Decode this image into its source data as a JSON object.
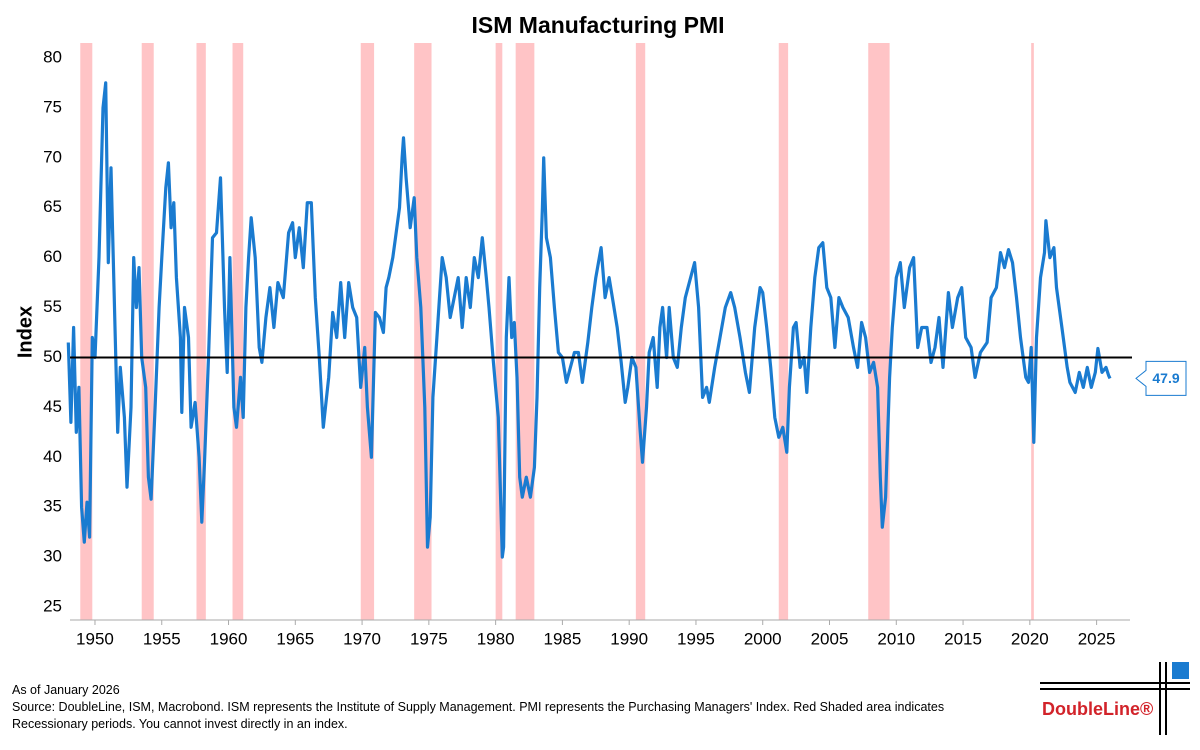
{
  "chart_data": {
    "type": "line",
    "title": "ISM Manufacturing PMI",
    "ylabel": "Index",
    "xlim": [
      1948.13,
      2027.5
    ],
    "ylim": [
      23.7,
      81.5
    ],
    "xticks": [
      1950,
      1955,
      1960,
      1965,
      1970,
      1975,
      1980,
      1985,
      1990,
      1995,
      2000,
      2005,
      2010,
      2015,
      2020,
      2025
    ],
    "yticks": [
      25,
      30,
      35,
      40,
      45,
      50,
      55,
      60,
      65,
      70,
      75,
      80
    ],
    "reference_line": 50,
    "color": "#1a7bd0",
    "recession_color": "#ffc4c6",
    "recessions": [
      [
        1948.9,
        1949.8
      ],
      [
        1953.5,
        1954.4
      ],
      [
        1957.6,
        1958.3
      ],
      [
        1960.3,
        1961.1
      ],
      [
        1969.9,
        1970.9
      ],
      [
        1973.9,
        1975.2
      ],
      [
        1980.0,
        1980.5
      ],
      [
        1981.5,
        1982.9
      ],
      [
        1990.5,
        1991.2
      ],
      [
        2001.2,
        2001.9
      ],
      [
        2007.9,
        2009.5
      ],
      [
        2020.1,
        2020.3
      ]
    ],
    "x": [
      1948.0,
      1948.2,
      1948.4,
      1948.6,
      1948.8,
      1949.0,
      1949.2,
      1949.4,
      1949.6,
      1949.8,
      1950.0,
      1950.3,
      1950.6,
      1950.8,
      1951.0,
      1951.2,
      1951.5,
      1951.7,
      1951.9,
      1952.2,
      1952.4,
      1952.7,
      1952.9,
      1953.1,
      1953.3,
      1953.5,
      1953.8,
      1954.0,
      1954.2,
      1954.5,
      1954.8,
      1955.0,
      1955.3,
      1955.5,
      1955.7,
      1955.9,
      1956.1,
      1956.4,
      1956.5,
      1956.7,
      1957.0,
      1957.2,
      1957.5,
      1957.8,
      1958.0,
      1958.2,
      1958.5,
      1958.8,
      1959.1,
      1959.4,
      1959.7,
      1959.9,
      1960.1,
      1960.4,
      1960.6,
      1960.9,
      1961.1,
      1961.3,
      1961.5,
      1961.7,
      1962.0,
      1962.3,
      1962.5,
      1962.8,
      1963.1,
      1963.4,
      1963.7,
      1964.1,
      1964.5,
      1964.8,
      1965.0,
      1965.3,
      1965.6,
      1965.9,
      1966.2,
      1966.5,
      1966.8,
      1967.1,
      1967.5,
      1967.8,
      1968.1,
      1968.4,
      1968.7,
      1969.0,
      1969.3,
      1969.6,
      1969.9,
      1970.2,
      1970.4,
      1970.7,
      1971.0,
      1971.3,
      1971.6,
      1971.8,
      1972.0,
      1972.3,
      1972.5,
      1972.8,
      1973.0,
      1973.1,
      1973.3,
      1973.6,
      1973.9,
      1974.1,
      1974.4,
      1974.7,
      1974.9,
      1975.1,
      1975.3,
      1975.6,
      1975.8,
      1976.0,
      1976.3,
      1976.6,
      1976.9,
      1977.2,
      1977.5,
      1977.8,
      1978.1,
      1978.4,
      1978.7,
      1979.0,
      1979.3,
      1979.5,
      1979.8,
      1980.0,
      1980.2,
      1980.5,
      1980.6,
      1980.8,
      1981.0,
      1981.2,
      1981.4,
      1981.6,
      1981.8,
      1982.0,
      1982.3,
      1982.6,
      1982.9,
      1983.1,
      1983.3,
      1983.5,
      1983.6,
      1983.8,
      1984.1,
      1984.4,
      1984.7,
      1985.0,
      1985.3,
      1985.6,
      1985.9,
      1986.2,
      1986.5,
      1986.9,
      1987.2,
      1987.5,
      1987.9,
      1988.2,
      1988.5,
      1988.8,
      1989.1,
      1989.4,
      1989.7,
      1989.9,
      1990.2,
      1990.5,
      1990.8,
      1991.0,
      1991.3,
      1991.5,
      1991.8,
      1992.1,
      1992.3,
      1992.5,
      1992.8,
      1993.0,
      1993.3,
      1993.6,
      1993.9,
      1994.2,
      1994.6,
      1994.9,
      1995.2,
      1995.5,
      1995.8,
      1996.0,
      1996.4,
      1996.8,
      1997.2,
      1997.6,
      1997.9,
      1998.3,
      1998.7,
      1999.0,
      1999.4,
      1999.8,
      2000.0,
      2000.3,
      2000.6,
      2000.9,
      2001.2,
      2001.5,
      2001.8,
      2002.0,
      2002.3,
      2002.5,
      2002.8,
      2003.1,
      2003.3,
      2003.6,
      2003.9,
      2004.2,
      2004.5,
      2004.8,
      2005.1,
      2005.4,
      2005.7,
      2006.0,
      2006.4,
      2006.8,
      2007.1,
      2007.4,
      2007.7,
      2008.0,
      2008.3,
      2008.6,
      2008.8,
      2008.95,
      2009.2,
      2009.5,
      2009.7,
      2010.0,
      2010.3,
      2010.6,
      2011.0,
      2011.3,
      2011.6,
      2011.9,
      2012.3,
      2012.6,
      2012.9,
      2013.2,
      2013.5,
      2013.9,
      2014.2,
      2014.6,
      2014.9,
      2015.2,
      2015.6,
      2015.9,
      2016.3,
      2016.8,
      2017.1,
      2017.5,
      2017.8,
      2018.1,
      2018.4,
      2018.7,
      2019.0,
      2019.3,
      2019.7,
      2019.9,
      2020.1,
      2020.3,
      2020.5,
      2020.8,
      2021.1,
      2021.2,
      2021.5,
      2021.8,
      2022.0,
      2022.4,
      2022.8,
      2023.0,
      2023.4,
      2023.7,
      2024.0,
      2024.3,
      2024.6,
      2024.9,
      2025.1,
      2025.4,
      2025.7,
      2025.9,
      2026.0
    ],
    "values": [
      51.5,
      43.5,
      53,
      42.5,
      47,
      35,
      31.5,
      35.5,
      32,
      52,
      50,
      60,
      75,
      77.5,
      59.5,
      69,
      53,
      42.5,
      49,
      44,
      37,
      45,
      60,
      55,
      59,
      50,
      47,
      38,
      35.8,
      45,
      55,
      60,
      67,
      69.5,
      63,
      65.5,
      58,
      52,
      44.5,
      55,
      52,
      43,
      45.5,
      40,
      33.5,
      39.5,
      50,
      62,
      62.5,
      68,
      55,
      48.5,
      60,
      45,
      43,
      48,
      44,
      55,
      60,
      64,
      60,
      51,
      49.5,
      54,
      57,
      53,
      57.5,
      56,
      62.5,
      63.5,
      60,
      63,
      59,
      65.5,
      65.5,
      56,
      50,
      43,
      48,
      54.5,
      52,
      57.5,
      52,
      57.5,
      55,
      54,
      47,
      51,
      45,
      40,
      54.5,
      54,
      52.5,
      57,
      58,
      60,
      62,
      65,
      70,
      72,
      68,
      63,
      66,
      60,
      55,
      45,
      31,
      34,
      46,
      52,
      56,
      60,
      58,
      54,
      56,
      58,
      53,
      58,
      55,
      60,
      58,
      62,
      58,
      55,
      50,
      47,
      44,
      30,
      31,
      52,
      58,
      52,
      53.5,
      48,
      38,
      36,
      38,
      36,
      39,
      46,
      57,
      65,
      70,
      62,
      60,
      55,
      50.5,
      50,
      47.5,
      49,
      50.5,
      50.5,
      47.5,
      51.5,
      55,
      58,
      61,
      56,
      58,
      55.5,
      53,
      49.5,
      45.5,
      47,
      50,
      49,
      43,
      39.5,
      45,
      50.5,
      52,
      47,
      53,
      55,
      50,
      55,
      50,
      49,
      53,
      56,
      58,
      59.5,
      55,
      46,
      47,
      45.5,
      49,
      52,
      55,
      56.5,
      55,
      52,
      48.5,
      46.5,
      53,
      57,
      56.5,
      53,
      49,
      44,
      42,
      43,
      40.5,
      47,
      53,
      53.5,
      49,
      50,
      46.5,
      53,
      58,
      61,
      61.5,
      57,
      56,
      51,
      56,
      55,
      54,
      51,
      49,
      53.5,
      52,
      48.5,
      49.5,
      47,
      38,
      33,
      36,
      48,
      53,
      58,
      59.5,
      55,
      59,
      60,
      51,
      53,
      53,
      49.5,
      51,
      54,
      49,
      56.5,
      53,
      56,
      57,
      52,
      51,
      48,
      50.5,
      51.5,
      56,
      57,
      60.5,
      59,
      60.8,
      59.5,
      56,
      52,
      48,
      47.5,
      51,
      41.5,
      52,
      58,
      60.5,
      63.7,
      60,
      61,
      57,
      53,
      49,
      47.5,
      46.5,
      48.5,
      47,
      49,
      47,
      48.5,
      50.9,
      48.5,
      49,
      48.2,
      47.9
    ],
    "footnote": [
      "As of January 2026",
      "Source: DoubleLine, ISM, Macrobond. ISM represents the Institute of Supply Management. PMI represents the Purchasing Managers' Index. Red Shaded area indicates",
      "Recessionary periods. You cannot invest directly in an index."
    ],
    "logo": "DoubleLine®"
  }
}
